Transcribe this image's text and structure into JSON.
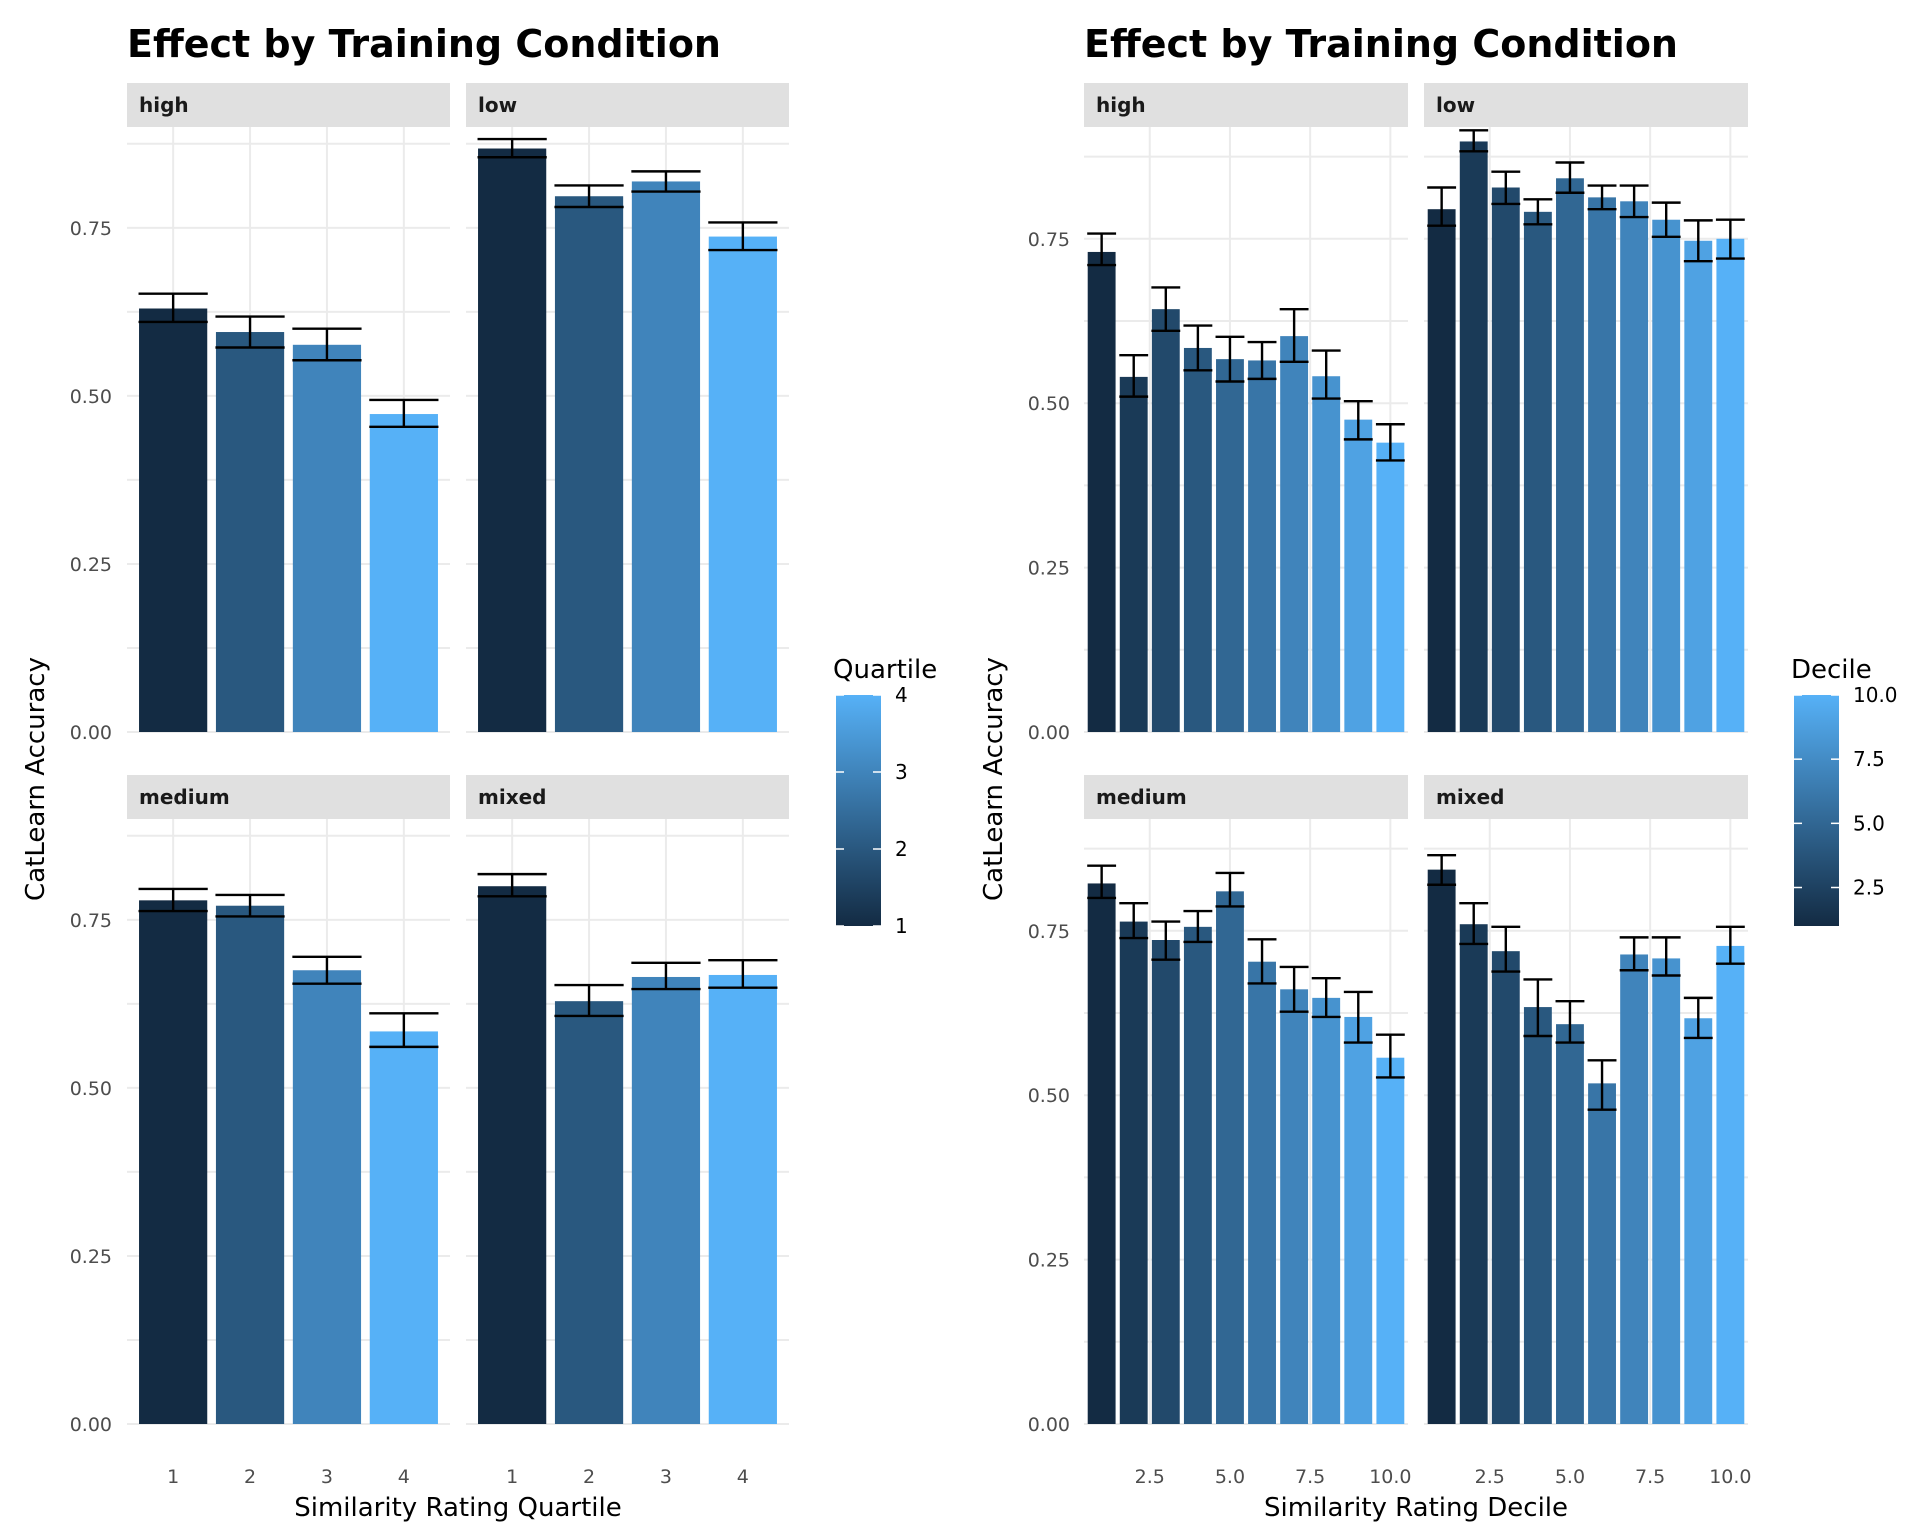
{
  "chart_data": [
    {
      "type": "bar",
      "title": "Effect by Training Condition",
      "xlabel": "Similarity Rating Quartile",
      "ylabel": "CatLearn Accuracy",
      "ylim": [
        0,
        0.9
      ],
      "yticks": [
        "0.00",
        "0.25",
        "0.50",
        "0.75"
      ],
      "xlim": [
        0.4,
        4.6
      ],
      "xticks": [
        1,
        2,
        3,
        4
      ],
      "xtick_labels": [
        "1",
        "2",
        "3",
        "4"
      ],
      "grid": true,
      "legend": {
        "title": "Quartile",
        "position": "right",
        "range": [
          1,
          4
        ],
        "labels": [
          "4",
          "3",
          "2",
          "1"
        ],
        "colors": [
          "#132B43",
          "#56B1F7"
        ]
      },
      "facets": [
        {
          "label": "high",
          "x": [
            1,
            2,
            3,
            4
          ],
          "values": [
            0.63,
            0.595,
            0.576,
            0.473
          ],
          "err_low": [
            0.61,
            0.572,
            0.553,
            0.454
          ],
          "err_high": [
            0.652,
            0.618,
            0.6,
            0.494
          ]
        },
        {
          "label": "low",
          "x": [
            1,
            2,
            3,
            4
          ],
          "values": [
            0.868,
            0.797,
            0.819,
            0.737
          ],
          "err_low": [
            0.855,
            0.781,
            0.804,
            0.717
          ],
          "err_high": [
            0.882,
            0.813,
            0.834,
            0.758
          ]
        },
        {
          "label": "medium",
          "x": [
            1,
            2,
            3,
            4
          ],
          "values": [
            0.779,
            0.771,
            0.675,
            0.584
          ],
          "err_low": [
            0.763,
            0.755,
            0.655,
            0.561
          ],
          "err_high": [
            0.796,
            0.787,
            0.695,
            0.611
          ]
        },
        {
          "label": "mixed",
          "x": [
            1,
            2,
            3,
            4
          ],
          "values": [
            0.8,
            0.629,
            0.665,
            0.668
          ],
          "err_low": [
            0.785,
            0.607,
            0.647,
            0.649
          ],
          "err_high": [
            0.818,
            0.653,
            0.686,
            0.69
          ]
        }
      ]
    },
    {
      "type": "bar",
      "title": "Effect by Training Condition",
      "xlabel": "Similarity Rating Decile",
      "ylabel": "CatLearn Accuracy",
      "ylim": [
        0,
        0.92
      ],
      "yticks": [
        "0.00",
        "0.25",
        "0.50",
        "0.75"
      ],
      "xlim": [
        0.45,
        10.55
      ],
      "xticks": [
        2.5,
        5,
        7.5,
        10
      ],
      "xtick_labels": [
        "2.5",
        "5.0",
        "7.5",
        "10.0"
      ],
      "grid": true,
      "legend": {
        "title": "Decile",
        "position": "right",
        "range": [
          1,
          10
        ],
        "labels": [
          "10.0",
          "7.5",
          "5.0",
          "2.5"
        ],
        "colors": [
          "#132B43",
          "#56B1F7"
        ]
      },
      "facets": [
        {
          "label": "high",
          "x": [
            1,
            2,
            3,
            4,
            5,
            6,
            7,
            8,
            9,
            10
          ],
          "values": [
            0.73,
            0.54,
            0.643,
            0.584,
            0.567,
            0.565,
            0.602,
            0.541,
            0.475,
            0.44
          ],
          "err_low": [
            0.71,
            0.51,
            0.61,
            0.55,
            0.533,
            0.537,
            0.563,
            0.507,
            0.445,
            0.413
          ],
          "err_high": [
            0.758,
            0.573,
            0.676,
            0.618,
            0.601,
            0.593,
            0.643,
            0.58,
            0.503,
            0.468
          ]
        },
        {
          "label": "low",
          "x": [
            1,
            2,
            3,
            4,
            5,
            6,
            7,
            8,
            9,
            10
          ],
          "values": [
            0.795,
            0.898,
            0.828,
            0.791,
            0.842,
            0.813,
            0.807,
            0.779,
            0.747,
            0.75
          ],
          "err_low": [
            0.77,
            0.883,
            0.803,
            0.772,
            0.82,
            0.795,
            0.783,
            0.753,
            0.716,
            0.72
          ],
          "err_high": [
            0.828,
            0.915,
            0.852,
            0.81,
            0.866,
            0.831,
            0.831,
            0.805,
            0.778,
            0.779
          ]
        },
        {
          "label": "medium",
          "x": [
            1,
            2,
            3,
            4,
            5,
            6,
            7,
            8,
            9,
            10
          ],
          "values": [
            0.822,
            0.764,
            0.736,
            0.756,
            0.81,
            0.703,
            0.661,
            0.648,
            0.619,
            0.557
          ],
          "err_low": [
            0.8,
            0.739,
            0.706,
            0.733,
            0.787,
            0.67,
            0.627,
            0.619,
            0.58,
            0.527
          ],
          "err_high": [
            0.849,
            0.792,
            0.764,
            0.78,
            0.838,
            0.737,
            0.695,
            0.678,
            0.657,
            0.592
          ]
        },
        {
          "label": "mixed",
          "x": [
            1,
            2,
            3,
            4,
            5,
            6,
            7,
            8,
            9,
            10
          ],
          "values": [
            0.843,
            0.76,
            0.719,
            0.634,
            0.608,
            0.518,
            0.714,
            0.708,
            0.617,
            0.727
          ],
          "err_low": [
            0.82,
            0.73,
            0.688,
            0.59,
            0.58,
            0.478,
            0.69,
            0.682,
            0.587,
            0.7
          ],
          "err_high": [
            0.865,
            0.792,
            0.756,
            0.676,
            0.643,
            0.553,
            0.74,
            0.74,
            0.648,
            0.756
          ]
        }
      ]
    }
  ]
}
